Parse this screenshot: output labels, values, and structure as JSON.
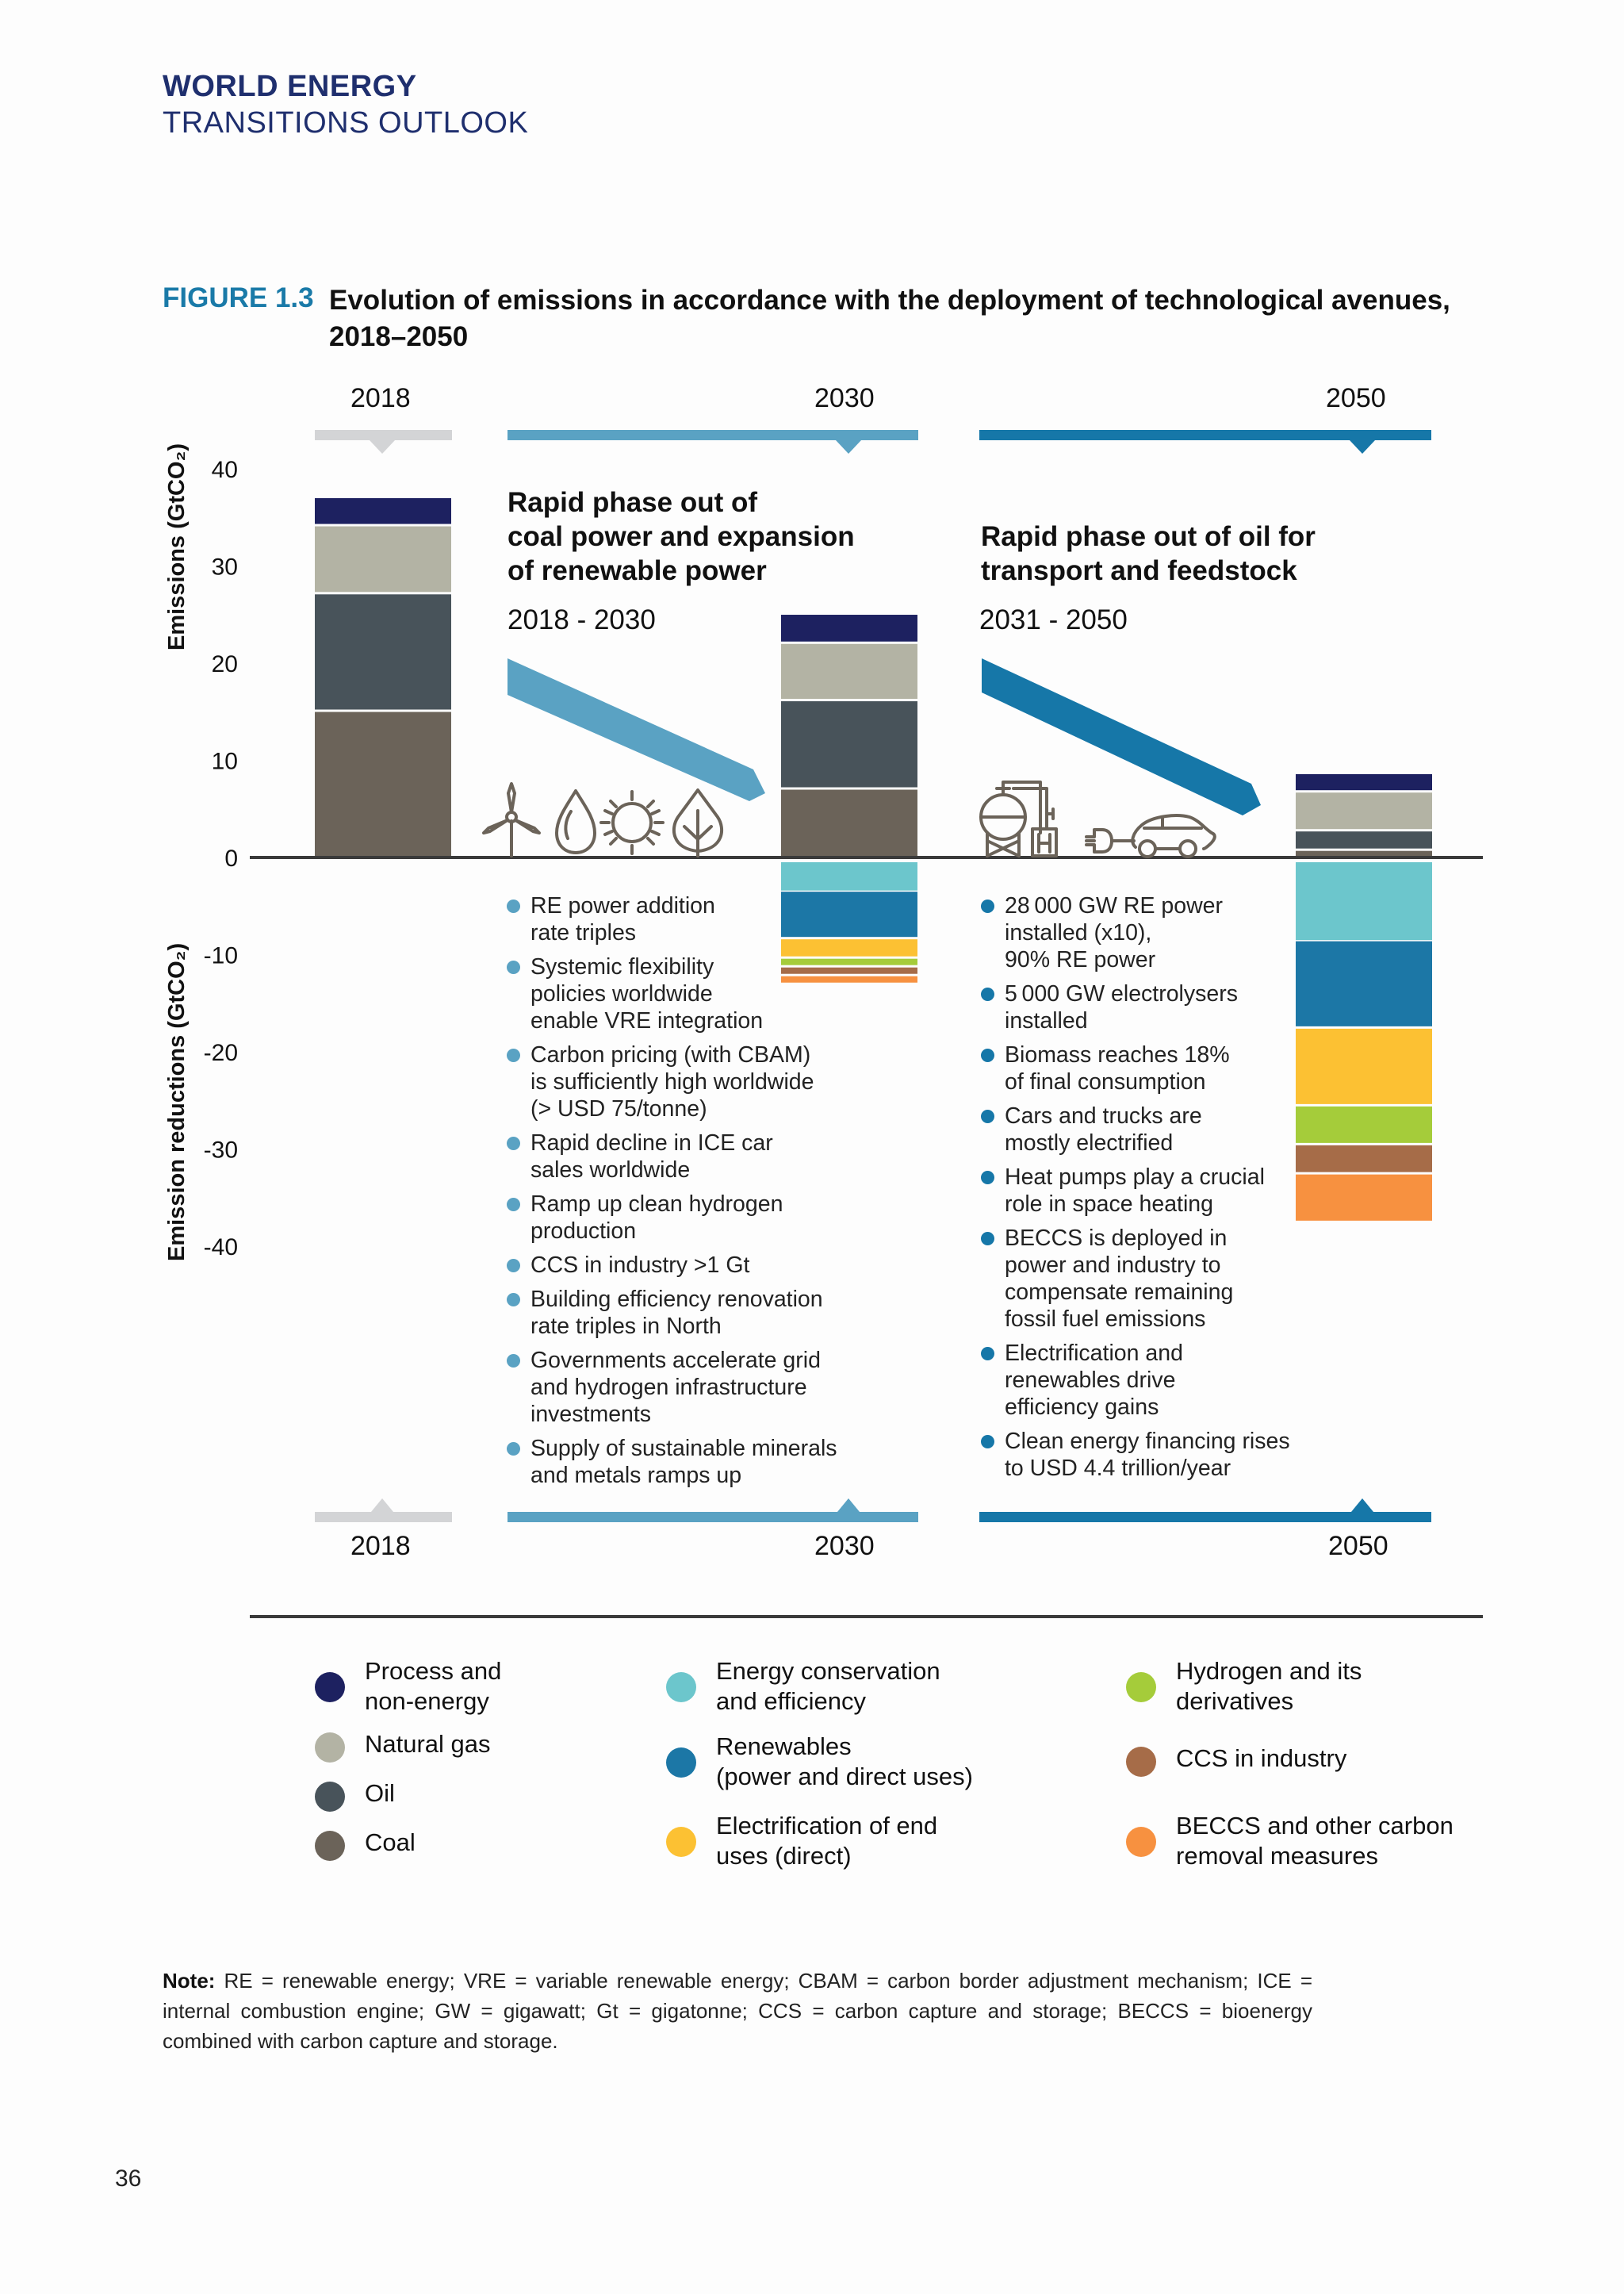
{
  "header": {
    "line1": "WORLD ENERGY",
    "line2": "TRANSITIONS OUTLOOK"
  },
  "figure": {
    "number": "FIGURE 1.3",
    "title": "Evolution of emissions in accordance with the deployment of technological avenues, 2018–2050"
  },
  "timeline": {
    "top_years": [
      "2018",
      "2030",
      "2050"
    ],
    "bottom_years": [
      "2018",
      "2030",
      "2050"
    ],
    "colors": [
      "#d3d4d6",
      "#5aa2c3",
      "#1677a8"
    ]
  },
  "phases": [
    {
      "title": "Rapid phase out of\ncoal power and expansion\nof renewable power",
      "period": "2018 - 2030",
      "arrow_color": "#5aa2c3",
      "icons": [
        "wind-turbine-icon",
        "water-drop-icon",
        "sun-icon",
        "leaf-icon"
      ],
      "bullet_color": "#5aa2c3",
      "bullets": [
        "RE power addition\nrate  triples",
        "Systemic flexibility\npolicies worldwide\nenable VRE integration",
        "Carbon pricing (with CBAM)\nis sufficiently high worldwide\n(> USD 75/tonne)",
        "Rapid decline in ICE car\nsales worldwide",
        "Ramp up clean hydrogen\nproduction",
        "CCS in industry >1 Gt",
        "Building efficiency renovation\nrate triples in North",
        "Governments accelerate grid\nand hydrogen infrastructure\ninvestments",
        "Supply of sustainable minerals\nand metals ramps up"
      ]
    },
    {
      "title": "Rapid phase out of oil for\ntransport and feedstock",
      "period": "2031 - 2050",
      "arrow_color": "#1677a8",
      "icons": [
        "hydrogen-plant-icon",
        "plug-icon",
        "electric-car-icon"
      ],
      "bullet_color": "#1677a8",
      "bullets": [
        "28 000 GW RE power\ninstalled (x10),\n90% RE power",
        "5 000 GW electrolysers\ninstalled",
        "Biomass reaches 18%\nof final consumption",
        "Cars and trucks are\nmostly electrified",
        "Heat pumps play a crucial\nrole in space heating",
        "BECCS is deployed in\npower and industry to\ncompensate remaining\nfossil fuel emissions",
        "Electrification and\nrenewables drive\nefficiency gains",
        "Clean energy financing rises\nto USD 4.4 trillion/year"
      ]
    }
  ],
  "chart_data": {
    "type": "bar",
    "stacked": true,
    "title": "Evolution of emissions in accordance with the deployment of technological avenues, 2018–2050",
    "categories": [
      "2018",
      "2030",
      "2050"
    ],
    "ylabel_positive": "Emissions (GtCO₂)",
    "ylabel_negative": "Emission reductions (GtCO₂)",
    "ylim": [
      -40,
      40
    ],
    "yticks": [
      40,
      30,
      20,
      10,
      0,
      -10,
      -20,
      -30,
      -40
    ],
    "grid": false,
    "legend_position": "bottom",
    "series": [
      {
        "name": "Coal",
        "color": "#6b6359",
        "values": [
          15.1,
          7.1,
          0.8
        ]
      },
      {
        "name": "Oil",
        "color": "#48535a",
        "values": [
          12.1,
          9.1,
          2.0
        ]
      },
      {
        "name": "Natural gas",
        "color": "#b3b3a4",
        "values": [
          7.0,
          5.9,
          4.0
        ]
      },
      {
        "name": "Process and non-energy",
        "color": "#1d2160",
        "values": [
          2.9,
          3.0,
          1.9
        ]
      },
      {
        "name": "Energy conservation and efficiency",
        "color": "#6cc6cc",
        "values": [
          0,
          -3.4,
          -8.5
        ]
      },
      {
        "name": "Renewables (power and direct uses)",
        "color": "#1c77a6",
        "values": [
          0,
          -4.9,
          -9.0
        ]
      },
      {
        "name": "Electrification of end uses (direct)",
        "color": "#fcc133",
        "values": [
          0,
          -2.0,
          -8.0
        ]
      },
      {
        "name": "Hydrogen and its derivatives",
        "color": "#a5cc3a",
        "values": [
          0,
          -0.9,
          -4.0
        ]
      },
      {
        "name": "CCS in industry",
        "color": "#a66c48",
        "values": [
          0,
          -0.9,
          -3.0
        ]
      },
      {
        "name": "BECCS and other carbon removal measures",
        "color": "#f79140",
        "values": [
          0,
          -0.9,
          -5.0
        ]
      }
    ]
  },
  "legend": {
    "columns": [
      [
        {
          "label": "Process and\nnon-energy",
          "color": "#1d2160"
        },
        {
          "label": "Natural gas",
          "color": "#b3b3a4"
        },
        {
          "label": "Oil",
          "color": "#48535a"
        },
        {
          "label": "Coal",
          "color": "#6b6359"
        }
      ],
      [
        {
          "label": "Energy conservation\nand efficiency",
          "color": "#6cc6cc"
        },
        {
          "label": "Renewables\n(power and direct uses)",
          "color": "#1c77a6"
        },
        {
          "label": "Electrification of end\nuses (direct)",
          "color": "#fcc133"
        }
      ],
      [
        {
          "label": "Hydrogen and its\nderivatives",
          "color": "#a5cc3a"
        },
        {
          "label": "CCS in industry",
          "color": "#a66c48"
        },
        {
          "label": "BECCS and other carbon\nremoval measures",
          "color": "#f79140"
        }
      ]
    ]
  },
  "note": {
    "label": "Note:",
    "text": "RE = renewable energy; VRE = variable renewable energy; CBAM = carbon border adjustment mechanism; ICE = internal combustion engine; GW = gigawatt; Gt = gigatonne; CCS = carbon capture and storage; BECCS = bioenergy combined with carbon capture and storage."
  },
  "page_number": "36"
}
